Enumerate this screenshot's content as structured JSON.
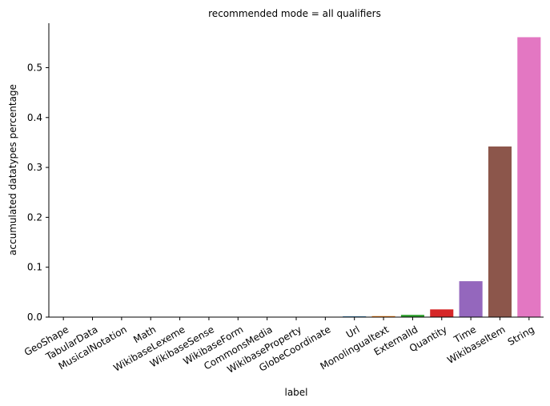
{
  "chart_data": {
    "type": "bar",
    "title": "recommended mode = all qualifiers",
    "xlabel": "label",
    "ylabel": "accumulated datatypes percentage",
    "categories": [
      "GeoShape",
      "TabularData",
      "MusicalNotation",
      "Math",
      "WikibaseLexeme",
      "WikibaseSense",
      "WikibaseForm",
      "CommonsMedia",
      "WikibaseProperty",
      "GlobeCoordinate",
      "Url",
      "Monolingualtext",
      "ExternalId",
      "Quantity",
      "Time",
      "WikibaseItem",
      "String"
    ],
    "values": [
      0.0,
      0.0,
      0.0,
      0.0,
      0.0,
      0.0,
      0.0,
      0.0,
      0.0,
      0.0001,
      0.0015,
      0.002,
      0.0045,
      0.0155,
      0.072,
      0.342,
      0.561
    ],
    "colors": [
      "#1f77b4",
      "#ff7f0e",
      "#2ca02c",
      "#d62728",
      "#9467bd",
      "#8c564b",
      "#e377c2",
      "#7f7f7f",
      "#bcbd22",
      "#17becf",
      "#1f77b4",
      "#ff7f0e",
      "#2ca02c",
      "#d62728",
      "#9467bd",
      "#8c564b",
      "#e377c2"
    ],
    "yticks": [
      "0.0",
      "0.1",
      "0.2",
      "0.3",
      "0.4",
      "0.5"
    ],
    "ylim": [
      0,
      0.589
    ],
    "grid": false,
    "legend": "none"
  }
}
